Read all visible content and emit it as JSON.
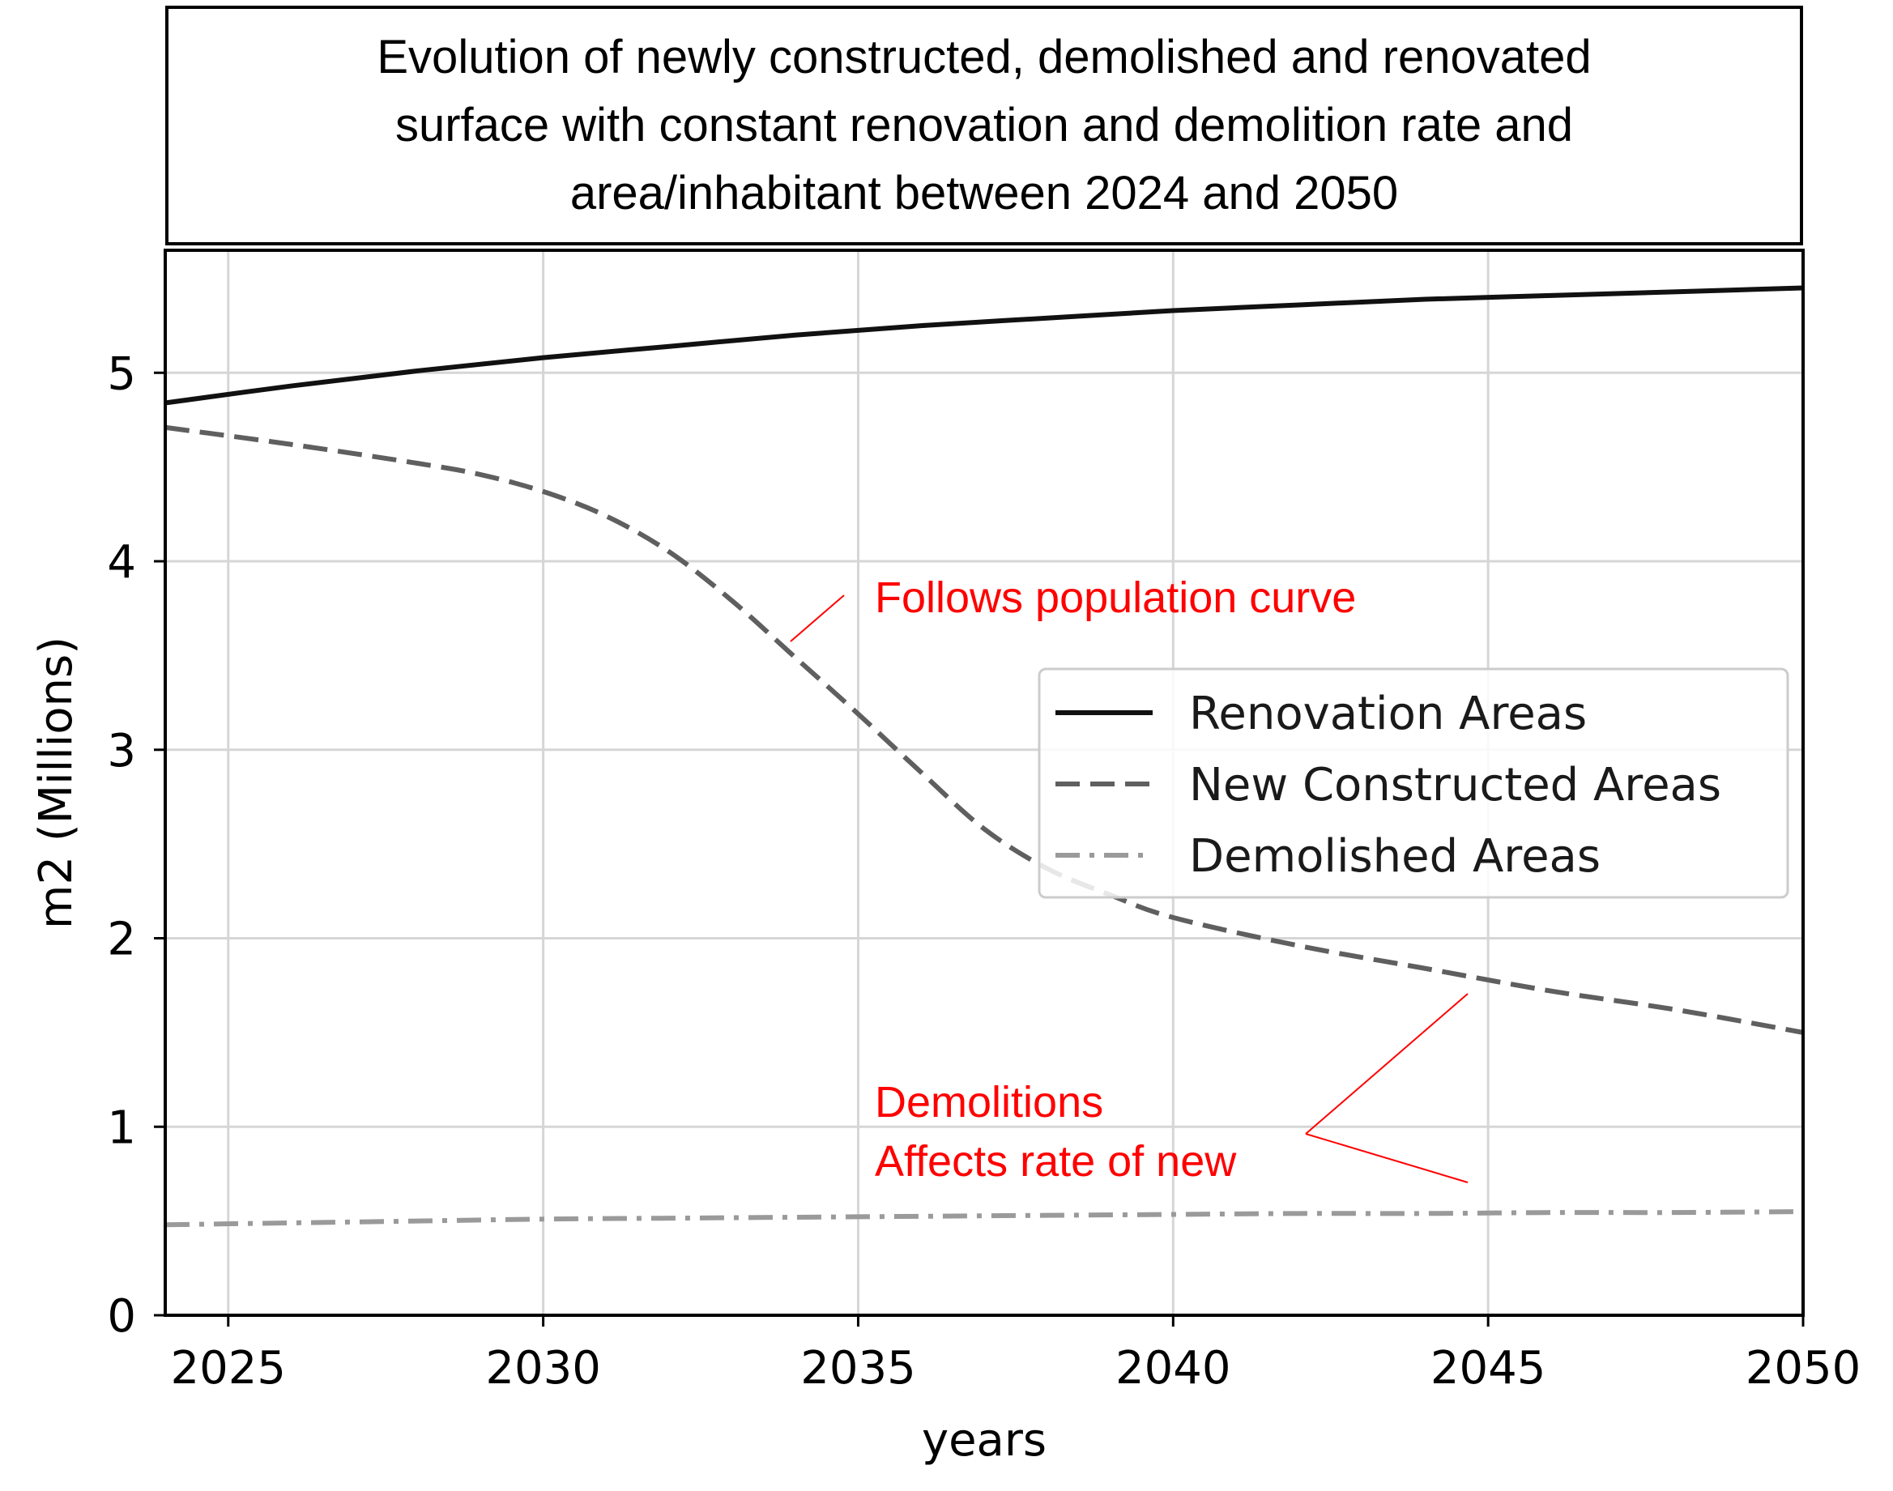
{
  "chart_data": {
    "type": "line",
    "title": [
      "Evolution of newly constructed, demolished and renovated",
      "surface with constant renovation and demolition rate and",
      "area/inhabitant between 2024 and 2050"
    ],
    "xlabel": "years",
    "ylabel": "m2 (Millions)",
    "xlim": [
      2024,
      2050
    ],
    "ylim": [
      0,
      5.65
    ],
    "xticks": [
      2025,
      2030,
      2035,
      2040,
      2045,
      2050
    ],
    "yticks": [
      0,
      1,
      2,
      3,
      4,
      5
    ],
    "grid": true,
    "legend_position": "center-right",
    "series": [
      {
        "name": "Renovation Areas",
        "style": "solid",
        "color": "#111111",
        "x": [
          2024,
          2026,
          2028,
          2030,
          2032,
          2034,
          2036,
          2038,
          2040,
          2042,
          2044,
          2046,
          2048,
          2050
        ],
        "y": [
          4.84,
          4.93,
          5.01,
          5.08,
          5.14,
          5.2,
          5.25,
          5.29,
          5.33,
          5.36,
          5.39,
          5.41,
          5.43,
          5.45
        ]
      },
      {
        "name": "New Constructed Areas",
        "style": "dashed",
        "color": "#5f5f5f",
        "x": [
          2024,
          2026,
          2028,
          2029,
          2030,
          2031,
          2032,
          2033,
          2034,
          2035,
          2036,
          2037,
          2038,
          2039,
          2040,
          2042,
          2044,
          2046,
          2048,
          2050
        ],
        "y": [
          4.71,
          4.62,
          4.52,
          4.46,
          4.37,
          4.24,
          4.05,
          3.79,
          3.49,
          3.19,
          2.88,
          2.58,
          2.37,
          2.23,
          2.11,
          1.96,
          1.84,
          1.72,
          1.62,
          1.5
        ]
      },
      {
        "name": "Demolished Areas",
        "style": "dashdot",
        "color": "#9a9a9a",
        "x": [
          2024,
          2026,
          2028,
          2030,
          2032,
          2034,
          2036,
          2038,
          2040,
          2042,
          2044,
          2046,
          2048,
          2050
        ],
        "y": [
          0.48,
          0.49,
          0.5,
          0.51,
          0.515,
          0.52,
          0.525,
          0.53,
          0.535,
          0.54,
          0.54,
          0.545,
          0.545,
          0.55
        ]
      }
    ],
    "annotations": [
      {
        "lines": [
          "Follows population curve"
        ],
        "color": "#ff0000"
      },
      {
        "lines": [
          "Demolitions",
          "Affects rate of new"
        ],
        "color": "#ff0000"
      }
    ]
  }
}
